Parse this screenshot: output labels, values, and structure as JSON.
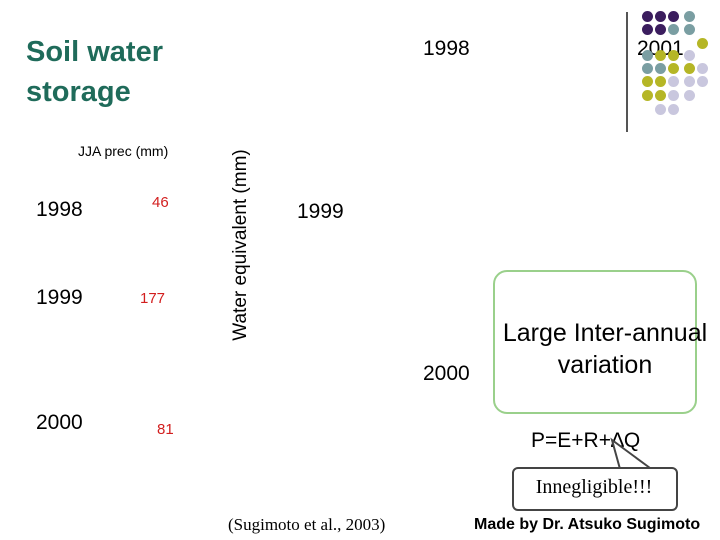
{
  "title": "Soil water storage",
  "jja_table": {
    "header": "JJA prec  (mm)",
    "rows": [
      {
        "year": "1998",
        "prec": "46"
      },
      {
        "year": "1999",
        "prec": "177"
      },
      {
        "year": "2000",
        "prec": "81"
      }
    ]
  },
  "plot": {
    "ylabel": "Water equivalent (mm)",
    "year_labels": [
      "1998",
      "2001",
      "1999",
      "2000"
    ]
  },
  "callout": "Large Inter-annual variation",
  "equation": "P=E+R+∆Q",
  "bubble": "Innegligible!!!",
  "citation": "(Sugimoto et al., 2003)",
  "author": "Made by Dr. Atsuko Sugimoto",
  "decoration": {
    "colors": {
      "purple": "#3b1d5e",
      "teal": "#7a9ea2",
      "olive": "#b5b626",
      "lavender": "#c9c7de"
    }
  }
}
